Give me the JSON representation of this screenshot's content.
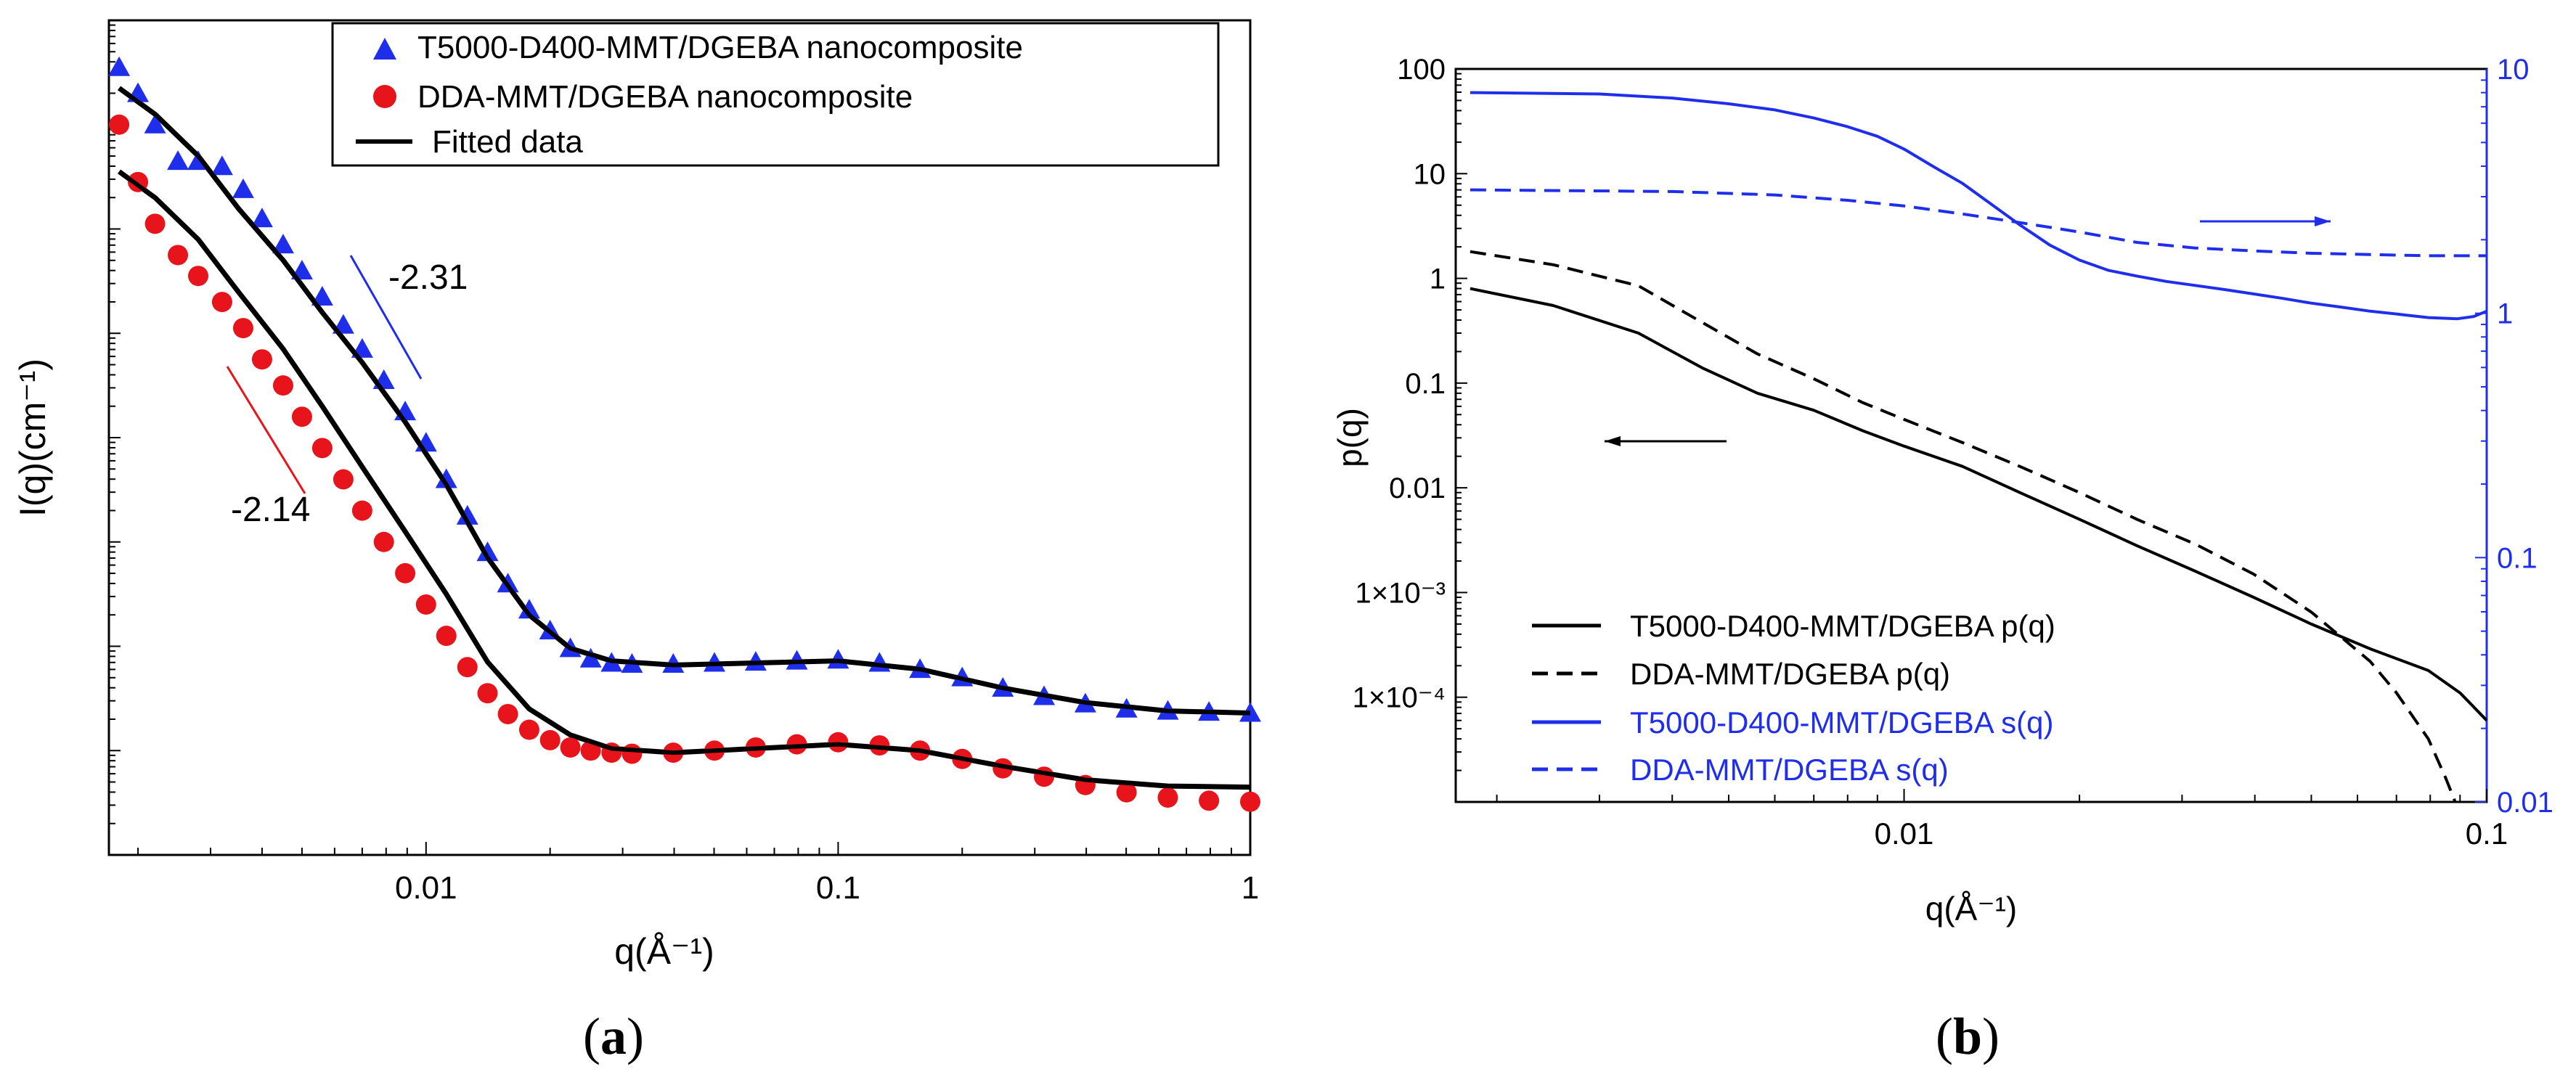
{
  "panel_labels": {
    "a_open": "(",
    "a_letter": "a",
    "a_close": ")",
    "b_open": "(",
    "b_letter": "b",
    "b_close": ")"
  },
  "chart_data": [
    {
      "id": "a",
      "type": "scatter",
      "title": "",
      "xlabel": "q(Å⁻¹)",
      "ylabel": "I(q)(cm⁻¹)",
      "xscale": "log",
      "xlim": [
        0.0017,
        1.0
      ],
      "ylim_log_decades": [
        0,
        8
      ],
      "x_ticks": [
        {
          "value": 0.01,
          "label": "0.01"
        },
        {
          "value": 0.1,
          "label": "0.1"
        },
        {
          "value": 1,
          "label": "1"
        }
      ],
      "legend": {
        "placement": "top",
        "entries": [
          {
            "label": "T5000-D400-MMT/DGEBA nanocomposite",
            "marker": "triangle",
            "color": "#1f2eea"
          },
          {
            "label": "DDA-MMT/DGEBA nanocomposite",
            "marker": "circle",
            "color": "#e8141b"
          },
          {
            "label": "Fitted data",
            "marker": "line",
            "color": "#000000"
          }
        ]
      },
      "annotations": [
        {
          "text": "-2.31",
          "color": "#000000",
          "slope_line_color": "#1f2eea",
          "slope": -2.31
        },
        {
          "text": "-2.14",
          "color": "#000000",
          "slope_line_color": "#e8141b",
          "slope": -2.14
        }
      ],
      "series": [
        {
          "name": "T5000-D400-MMT/DGEBA nanocomposite",
          "marker": "triangle",
          "color": "#1f2eea",
          "x": [
            0.0018,
            0.002,
            0.0022,
            0.0025,
            0.0028,
            0.0032,
            0.0036,
            0.004,
            0.0045,
            0.005,
            0.0056,
            0.0063,
            0.007,
            0.0079,
            0.0089,
            0.01,
            0.0112,
            0.0126,
            0.0141,
            0.0158,
            0.0178,
            0.02,
            0.0224,
            0.0251,
            0.0282,
            0.0316,
            0.0398,
            0.0501,
            0.0631,
            0.0794,
            0.1,
            0.126,
            0.158,
            0.2,
            0.251,
            0.316,
            0.398,
            0.501,
            0.631,
            0.794,
            1.0
          ],
          "y_log": [
            7.55,
            7.3,
            7.0,
            6.65,
            6.65,
            6.6,
            6.38,
            6.1,
            5.85,
            5.6,
            5.35,
            5.08,
            4.85,
            4.55,
            4.25,
            3.95,
            3.6,
            3.25,
            2.9,
            2.6,
            2.35,
            2.15,
            1.98,
            1.88,
            1.84,
            1.83,
            1.83,
            1.84,
            1.85,
            1.86,
            1.87,
            1.84,
            1.78,
            1.7,
            1.6,
            1.52,
            1.45,
            1.4,
            1.38,
            1.37,
            1.36
          ]
        },
        {
          "name": "DDA-MMT/DGEBA nanocomposite",
          "marker": "circle",
          "color": "#e8141b",
          "x": [
            0.0018,
            0.002,
            0.0022,
            0.0025,
            0.0028,
            0.0032,
            0.0036,
            0.004,
            0.0045,
            0.005,
            0.0056,
            0.0063,
            0.007,
            0.0079,
            0.0089,
            0.01,
            0.0112,
            0.0126,
            0.0141,
            0.0158,
            0.0178,
            0.02,
            0.0224,
            0.0251,
            0.0282,
            0.0316,
            0.0398,
            0.0501,
            0.0631,
            0.0794,
            0.1,
            0.126,
            0.158,
            0.2,
            0.251,
            0.316,
            0.398,
            0.501,
            0.631,
            0.794,
            1.0
          ],
          "y_log": [
            7.0,
            6.45,
            6.05,
            5.75,
            5.55,
            5.3,
            5.05,
            4.75,
            4.5,
            4.2,
            3.9,
            3.6,
            3.3,
            3.0,
            2.7,
            2.4,
            2.1,
            1.8,
            1.55,
            1.35,
            1.2,
            1.1,
            1.03,
            1.0,
            0.98,
            0.97,
            0.98,
            1.0,
            1.03,
            1.06,
            1.08,
            1.05,
            1.0,
            0.92,
            0.83,
            0.75,
            0.67,
            0.6,
            0.55,
            0.52,
            0.51
          ]
        },
        {
          "name": "Fitted data (T5000-D400)",
          "marker": "line",
          "color": "#000000",
          "x": [
            0.0018,
            0.0022,
            0.0028,
            0.0035,
            0.0045,
            0.0056,
            0.007,
            0.0089,
            0.0112,
            0.0141,
            0.0178,
            0.0224,
            0.0282,
            0.0398,
            0.0631,
            0.1,
            0.158,
            0.251,
            0.398,
            0.631,
            1.0
          ],
          "y_log": [
            7.35,
            7.1,
            6.7,
            6.2,
            5.7,
            5.2,
            4.72,
            4.15,
            3.55,
            2.85,
            2.3,
            1.98,
            1.86,
            1.82,
            1.84,
            1.86,
            1.78,
            1.6,
            1.46,
            1.38,
            1.36
          ]
        },
        {
          "name": "Fitted data (DDA)",
          "marker": "line",
          "color": "#000000",
          "x": [
            0.0018,
            0.0022,
            0.0028,
            0.0035,
            0.0045,
            0.0056,
            0.007,
            0.0089,
            0.0112,
            0.0141,
            0.0178,
            0.0224,
            0.0282,
            0.0398,
            0.0631,
            0.1,
            0.158,
            0.251,
            0.398,
            0.631,
            1.0
          ],
          "y_log": [
            6.55,
            6.3,
            5.9,
            5.4,
            4.85,
            4.3,
            3.72,
            3.1,
            2.5,
            1.85,
            1.4,
            1.15,
            1.02,
            0.98,
            1.02,
            1.06,
            1.0,
            0.85,
            0.72,
            0.66,
            0.65
          ]
        }
      ]
    },
    {
      "id": "b",
      "type": "line",
      "title": "",
      "xlabel": "q(Å⁻¹)",
      "ylabel": "p(q)",
      "xscale": "log",
      "xlim": [
        0.0017,
        0.1
      ],
      "x_ticks": [
        {
          "value": 0.01,
          "label": "0.01"
        },
        {
          "value": 0.1,
          "label": "0.1"
        }
      ],
      "y_left": {
        "scale": "log",
        "lim": [
          1e-05,
          100
        ],
        "ticks": [
          {
            "value": 100,
            "label": "100"
          },
          {
            "value": 10,
            "label": "10"
          },
          {
            "value": 1,
            "label": "1"
          },
          {
            "value": 0.1,
            "label": "0.1"
          },
          {
            "value": 0.01,
            "label": "0.01"
          },
          {
            "value": 0.001,
            "label": "1×10⁻³"
          },
          {
            "value": 0.0001,
            "label": "1×10⁻⁴"
          }
        ],
        "color": "#000000"
      },
      "y_right": {
        "scale": "log",
        "lim": [
          0.01,
          10
        ],
        "ticks": [
          {
            "value": 10,
            "label": "10"
          },
          {
            "value": 1,
            "label": "1"
          },
          {
            "value": 0.1,
            "label": "0.1"
          },
          {
            "value": 0.01,
            "label": "0.01"
          }
        ],
        "color": "#1f2eea"
      },
      "legend": {
        "placement": "bottom-left",
        "entries": [
          {
            "label": "T5000-D400-MMT/DGEBA p(q)",
            "style": "solid",
            "color": "#000000"
          },
          {
            "label": "DDA-MMT/DGEBA p(q)",
            "style": "dashed",
            "color": "#000000"
          },
          {
            "label": "T5000-D400-MMT/DGEBA s(q)",
            "style": "solid",
            "color": "#1f2eea"
          },
          {
            "label": "DDA-MMT/DGEBA s(q)",
            "style": "dashed",
            "color": "#1f2eea"
          }
        ]
      },
      "annotations": [
        {
          "type": "arrow",
          "direction": "left",
          "axis": "left",
          "color": "#000000"
        },
        {
          "type": "arrow",
          "direction": "right",
          "axis": "right",
          "color": "#1f2eea"
        }
      ],
      "series": [
        {
          "name": "T5000-D400-MMT/DGEBA p(q)",
          "axis": "left",
          "style": "solid",
          "color": "#000000",
          "x": [
            0.0018,
            0.0025,
            0.0035,
            0.0045,
            0.0056,
            0.007,
            0.0085,
            0.01,
            0.0126,
            0.0158,
            0.02,
            0.0251,
            0.0316,
            0.0398,
            0.05,
            0.0631,
            0.0794,
            0.09,
            0.1
          ],
          "y": [
            0.8,
            0.55,
            0.3,
            0.14,
            0.08,
            0.055,
            0.035,
            0.025,
            0.016,
            0.009,
            0.005,
            0.0028,
            0.0016,
            0.0009,
            0.0005,
            0.00029,
            0.00018,
            0.00011,
            6e-05
          ]
        },
        {
          "name": "DDA-MMT/DGEBA p(q)",
          "axis": "left",
          "style": "dashed",
          "color": "#000000",
          "x": [
            0.0018,
            0.0025,
            0.0035,
            0.0045,
            0.0056,
            0.007,
            0.0085,
            0.01,
            0.0126,
            0.0158,
            0.02,
            0.0251,
            0.0316,
            0.0398,
            0.05,
            0.0631,
            0.07,
            0.0794,
            0.085,
            0.0883
          ],
          "y": [
            1.8,
            1.35,
            0.85,
            0.38,
            0.19,
            0.11,
            0.065,
            0.045,
            0.027,
            0.016,
            0.009,
            0.005,
            0.0029,
            0.0015,
            0.00065,
            0.00022,
            0.00011,
            4e-05,
            1.7e-05,
            1e-05
          ]
        },
        {
          "name": "T5000-D400-MMT/DGEBA s(q)",
          "axis": "right",
          "style": "solid",
          "color": "#1f2eea",
          "x": [
            0.0018,
            0.003,
            0.004,
            0.005,
            0.006,
            0.007,
            0.008,
            0.009,
            0.01,
            0.0112,
            0.0126,
            0.0141,
            0.0158,
            0.0178,
            0.02,
            0.0224,
            0.0251,
            0.0282,
            0.0316,
            0.0355,
            0.0398,
            0.0447,
            0.05,
            0.0562,
            0.0631,
            0.0708,
            0.0794,
            0.0891,
            0.095,
            0.1
          ],
          "y": [
            8.0,
            7.9,
            7.6,
            7.2,
            6.8,
            6.3,
            5.8,
            5.3,
            4.7,
            4.0,
            3.4,
            2.8,
            2.3,
            1.9,
            1.65,
            1.5,
            1.42,
            1.35,
            1.3,
            1.25,
            1.2,
            1.15,
            1.1,
            1.06,
            1.02,
            0.99,
            0.96,
            0.95,
            0.97,
            1.02
          ]
        },
        {
          "name": "DDA-MMT/DGEBA s(q)",
          "axis": "right",
          "style": "dashed",
          "color": "#1f2eea",
          "x": [
            0.0018,
            0.004,
            0.006,
            0.008,
            0.01,
            0.0126,
            0.0158,
            0.02,
            0.0251,
            0.0316,
            0.0398,
            0.05,
            0.0631,
            0.0794,
            0.1
          ],
          "y": [
            3.2,
            3.15,
            3.05,
            2.9,
            2.75,
            2.55,
            2.35,
            2.15,
            1.95,
            1.85,
            1.8,
            1.76,
            1.74,
            1.72,
            1.72
          ]
        }
      ]
    }
  ]
}
